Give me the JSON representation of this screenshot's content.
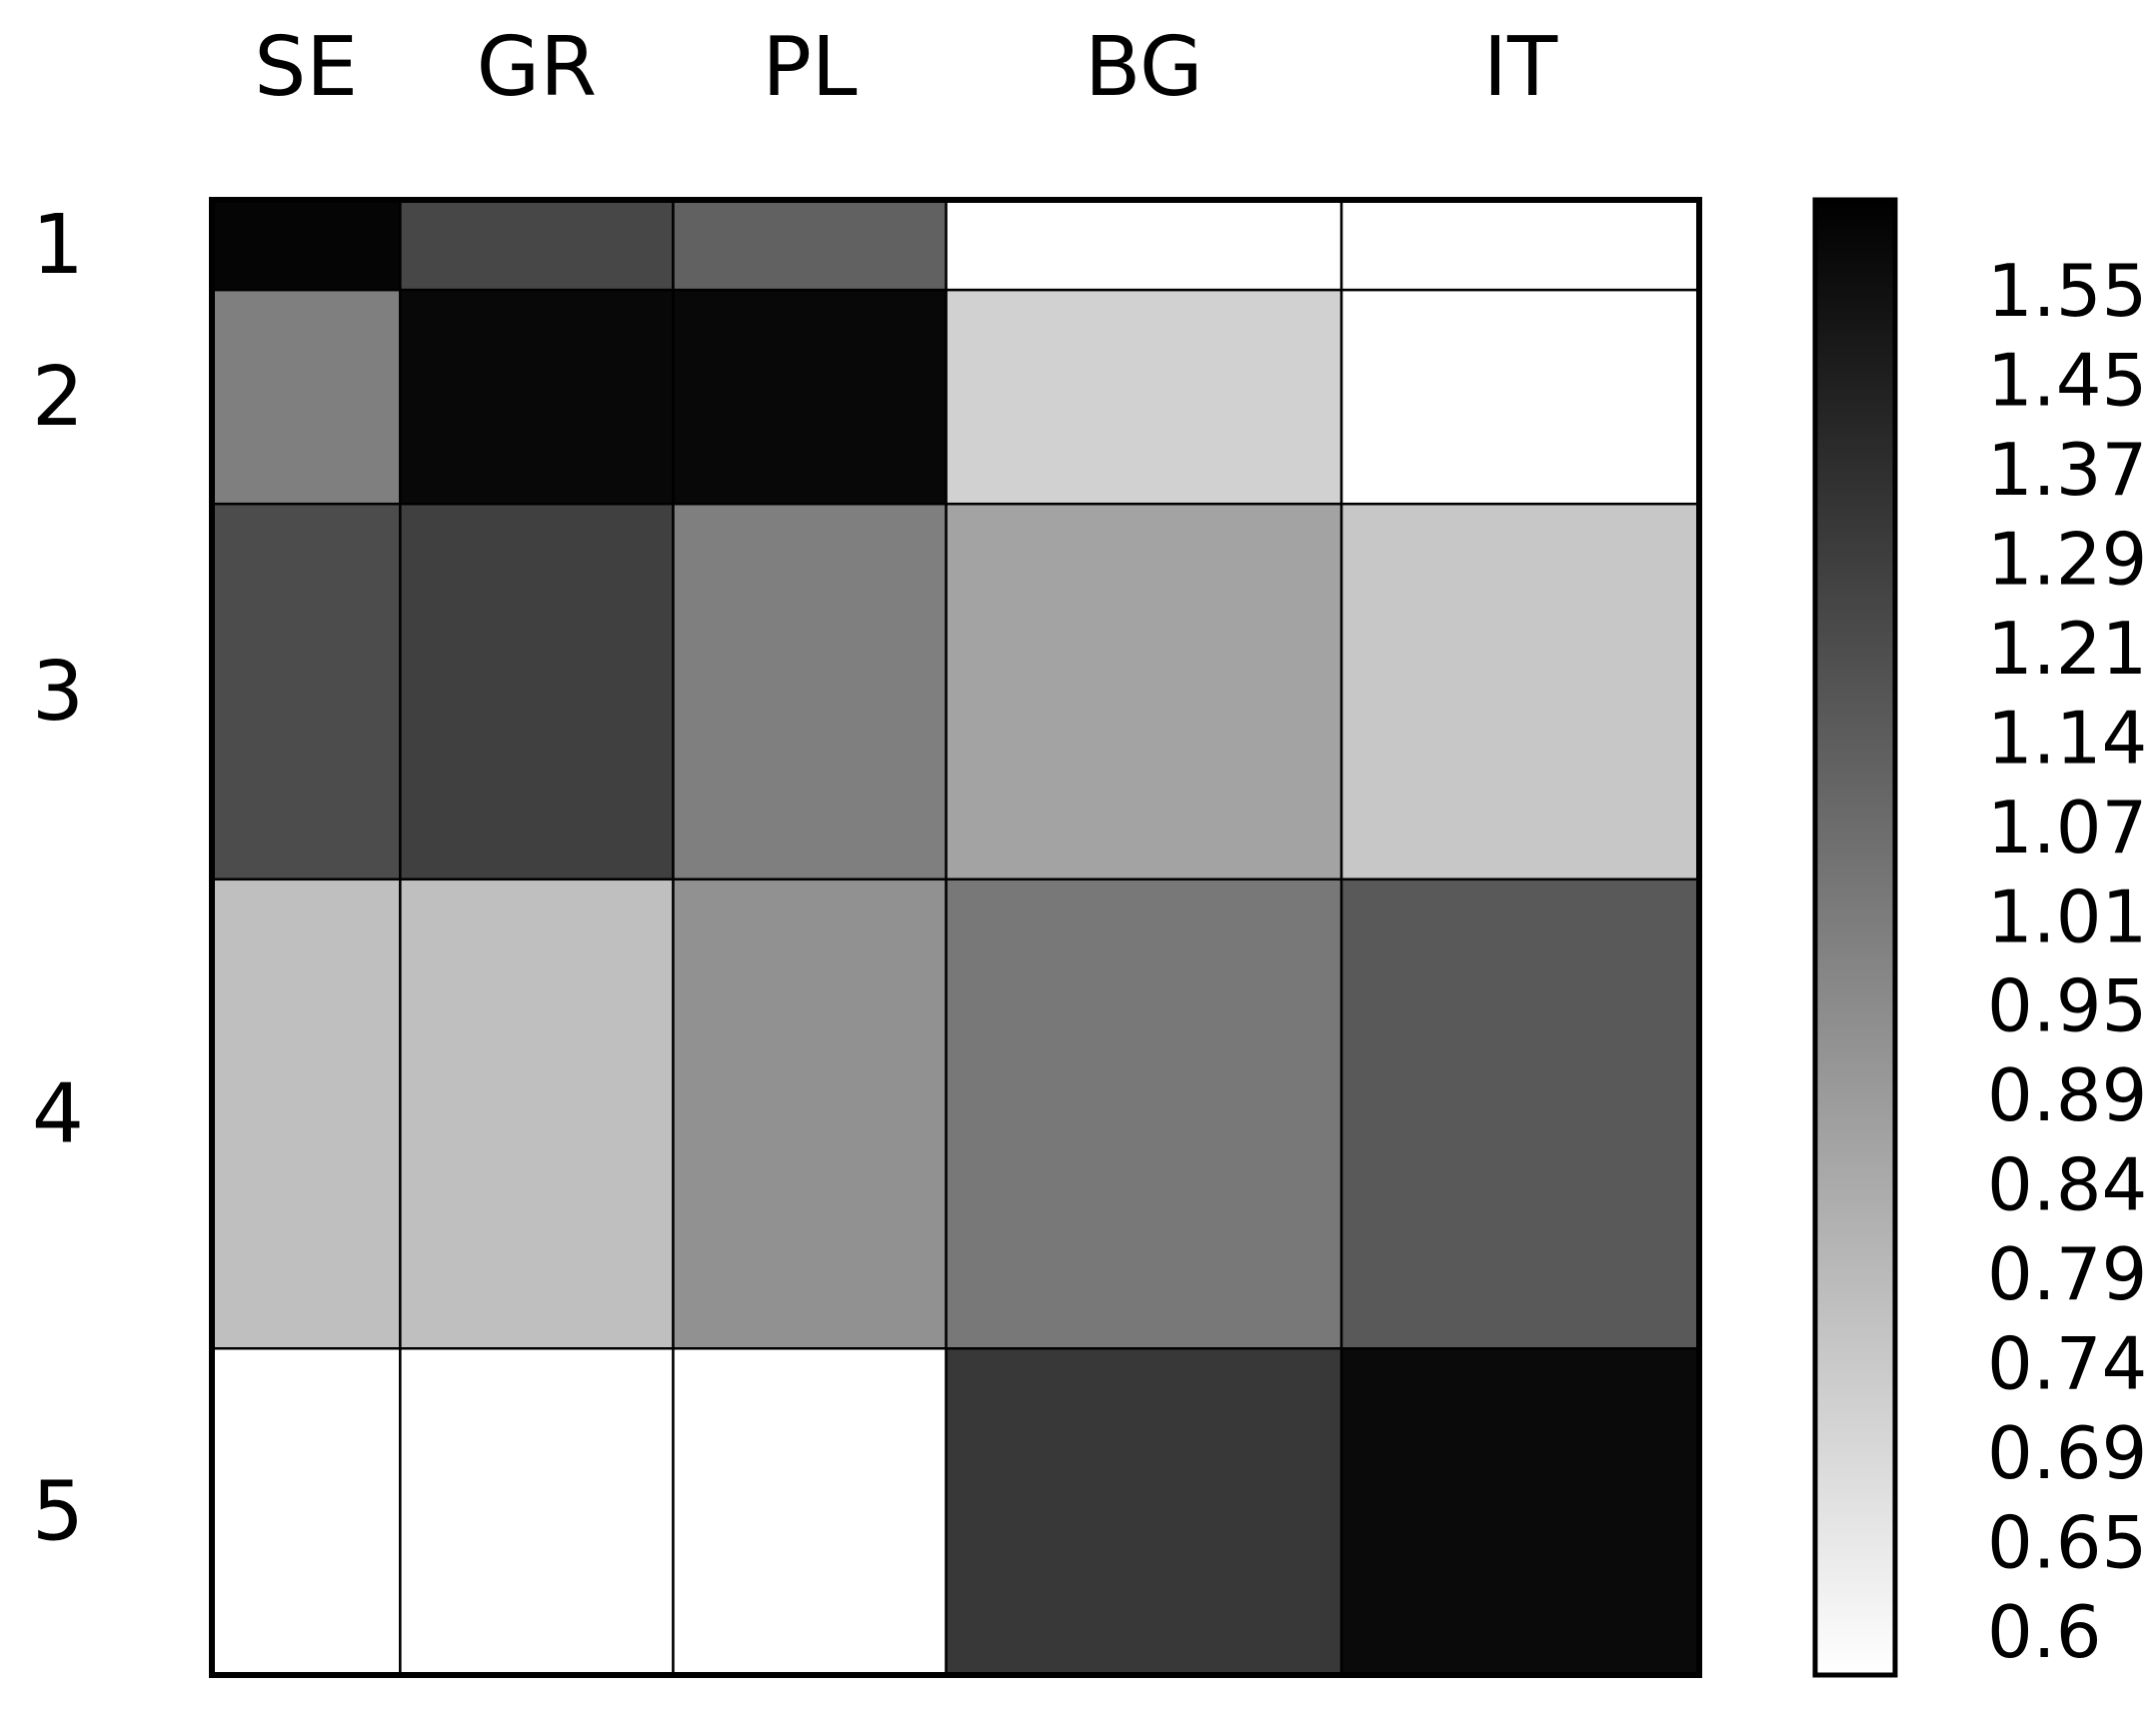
{
  "chart_data": {
    "type": "heatmap",
    "title": "",
    "xlabel": "",
    "ylabel": "",
    "columns": [
      "SE",
      "GR",
      "PL",
      "BG",
      "IT"
    ],
    "rows": [
      "1",
      "2",
      "3",
      "4",
      "5"
    ],
    "column_weights": [
      1.0,
      1.45,
      1.45,
      2.1,
      1.9
    ],
    "row_weights": [
      0.24,
      0.57,
      1.0,
      1.25,
      0.87
    ],
    "values": [
      [
        1.58,
        1.32,
        1.22,
        0.6,
        0.6
      ],
      [
        1.1,
        1.57,
        1.57,
        0.78,
        0.6
      ],
      [
        1.3,
        1.35,
        1.1,
        0.96,
        0.82
      ],
      [
        0.85,
        0.85,
        1.03,
        1.13,
        1.25
      ],
      [
        0.6,
        0.6,
        0.6,
        1.38,
        1.56
      ]
    ],
    "colorbar": {
      "ticks": [
        "1.55",
        "1.45",
        "1.37",
        "1.29",
        "1.21",
        "1.14",
        "1.07",
        "1.01",
        "0.95",
        "0.89",
        "0.84",
        "0.79",
        "0.74",
        "0.69",
        "0.65",
        "0.6"
      ],
      "range": [
        0.6,
        1.6
      ],
      "colors": [
        "#ffffff",
        "#000000"
      ]
    }
  }
}
